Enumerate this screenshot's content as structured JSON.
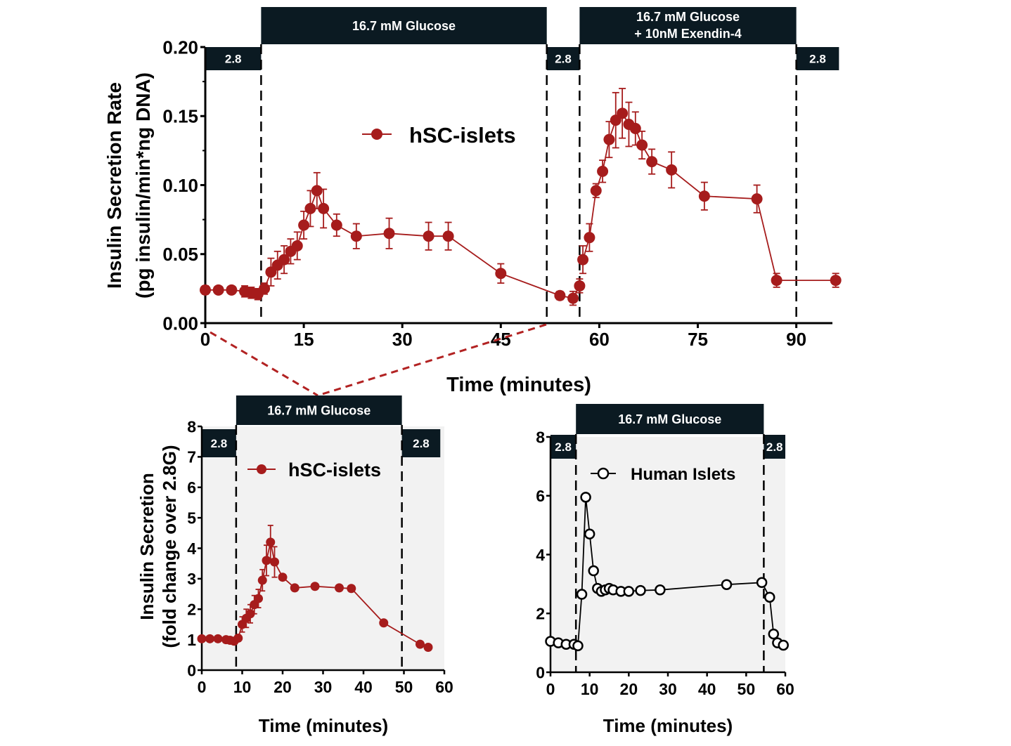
{
  "colors": {
    "series_red": "#a61c1c",
    "bar_dark": "#0b1a22",
    "panel_shade": "#f2f2f2",
    "zoom_line": "#b22222"
  },
  "chart_data": [
    {
      "type": "line",
      "xlabel": "Time (minutes)",
      "ylabel_line1": "Insulin Secretion Rate",
      "ylabel_line2": "(pg insulin/min*ng DNA)",
      "xlim": [
        0,
        95.5
      ],
      "ylim": [
        0,
        0.2
      ],
      "xticks": [
        "0",
        "15",
        "30",
        "45",
        "60",
        "75",
        "90"
      ],
      "xtick_values": [
        0,
        15,
        30,
        45,
        60,
        75,
        90
      ],
      "yticks": [
        "0.00",
        "0.05",
        "0.10",
        "0.15",
        "0.20"
      ],
      "ytick_values": [
        0,
        0.05,
        0.1,
        0.15,
        0.2
      ],
      "vlines": [
        8.5,
        52,
        57,
        90
      ],
      "treatment_bars": [
        {
          "label": "2.8",
          "start": 0,
          "end": 8.5,
          "level": "low"
        },
        {
          "label": "16.7 mM Glucose",
          "start": 8.5,
          "end": 52,
          "level": "high"
        },
        {
          "label": "2.8",
          "start": 52,
          "end": 57,
          "level": "low"
        },
        {
          "label": "16.7 mM Glucose",
          "label2": "+ 10nM Exendin-4",
          "start": 57,
          "end": 90,
          "level": "high"
        },
        {
          "label": "2.8",
          "start": 90,
          "end": 96.5,
          "level": "low"
        }
      ],
      "legend_position": "upper-center",
      "series": [
        {
          "name": "hSC-islets",
          "marker": "filled-circle",
          "segments": [
            {
              "x": [
                0,
                2,
                4,
                6,
                7,
                8,
                9,
                10,
                11,
                12,
                13,
                14,
                15,
                16,
                17,
                18,
                20,
                23,
                28,
                34,
                37,
                45,
                54,
                56,
                57
              ],
              "y": [
                0.024,
                0.024,
                0.024,
                0.023,
                0.022,
                0.021,
                0.025,
                0.037,
                0.042,
                0.046,
                0.052,
                0.056,
                0.071,
                0.083,
                0.096,
                0.083,
                0.071,
                0.063,
                0.065,
                0.063,
                0.063,
                0.036,
                0.02,
                0.018,
                0.027
              ],
              "err": [
                0.003,
                0.002,
                0.002,
                0.004,
                0.004,
                0.004,
                0.004,
                0.01,
                0.01,
                0.01,
                0.009,
                0.01,
                0.01,
                0.013,
                0.013,
                0.014,
                0.008,
                0.009,
                0.011,
                0.01,
                0.01,
                0.007,
                0.003,
                0.005,
                0.005
              ]
            },
            {
              "x": [
                57.5,
                58.5,
                59.5,
                60.5,
                61.5,
                62.5,
                63.5,
                64.5,
                65.5,
                66.5,
                68,
                71,
                76,
                84,
                87,
                96
              ],
              "y": [
                0.046,
                0.062,
                0.096,
                0.11,
                0.133,
                0.147,
                0.152,
                0.144,
                0.141,
                0.129,
                0.117,
                0.111,
                0.092,
                0.09,
                0.031,
                0.031
              ],
              "err": [
                0.01,
                0.01,
                0.005,
                0.008,
                0.013,
                0.02,
                0.018,
                0.016,
                0.012,
                0.01,
                0.009,
                0.013,
                0.01,
                0.01,
                0.005,
                0.005
              ]
            }
          ]
        }
      ]
    },
    {
      "type": "line",
      "xlabel": "Time (minutes)",
      "ylabel_line1": "Insulin Secretion",
      "ylabel_line2": "(fold change over 2.8G)",
      "xlim": [
        0,
        60
      ],
      "ylim": [
        0,
        8
      ],
      "xticks": [
        "0",
        "10",
        "20",
        "30",
        "40",
        "50",
        "60"
      ],
      "xtick_values": [
        0,
        10,
        20,
        30,
        40,
        50,
        60
      ],
      "yticks": [
        "0",
        "1",
        "2",
        "3",
        "4",
        "5",
        "6",
        "7",
        "8"
      ],
      "ytick_values": [
        0,
        1,
        2,
        3,
        4,
        5,
        6,
        7,
        8
      ],
      "vlines": [
        8.5,
        49.5
      ],
      "treatment_bars": [
        {
          "label": "2.8",
          "start": 0,
          "end": 8.5,
          "level": "low"
        },
        {
          "label": "16.7 mM Glucose",
          "start": 8.5,
          "end": 49.5,
          "level": "high"
        },
        {
          "label": "2.8",
          "start": 49.5,
          "end": 59,
          "level": "low"
        }
      ],
      "legend_position": "top-left",
      "series": [
        {
          "name": "hSC-islets",
          "marker": "filled-circle",
          "segments": [
            {
              "x": [
                0,
                2,
                4,
                6,
                7,
                8,
                9,
                10,
                11,
                12,
                13,
                14,
                15,
                16,
                17,
                18,
                20,
                23,
                28,
                34,
                37,
                45,
                54,
                56
              ],
              "y": [
                1.03,
                1.03,
                1.03,
                1.0,
                0.98,
                0.95,
                1.05,
                1.5,
                1.7,
                1.85,
                2.15,
                2.35,
                2.95,
                3.6,
                4.2,
                3.55,
                3.05,
                2.7,
                2.75,
                2.7,
                2.68,
                1.55,
                0.85,
                0.75
              ],
              "err": [
                0.05,
                0.05,
                0.05,
                0.08,
                0.08,
                0.08,
                0.1,
                0.25,
                0.3,
                0.3,
                0.3,
                0.3,
                0.35,
                0.5,
                0.55,
                0.5,
                0.1,
                0.1,
                0.1,
                0.1,
                0.1,
                0.08,
                0.05,
                0.05
              ]
            }
          ]
        }
      ]
    },
    {
      "type": "line",
      "xlabel": "Time (minutes)",
      "xlim": [
        0,
        60
      ],
      "ylim": [
        0,
        8
      ],
      "xticks": [
        "0",
        "10",
        "20",
        "30",
        "40",
        "50",
        "60"
      ],
      "xtick_values": [
        0,
        10,
        20,
        30,
        40,
        50,
        60
      ],
      "yticks": [
        "0",
        "2",
        "4",
        "6",
        "8"
      ],
      "ytick_values": [
        0,
        2,
        4,
        6,
        8
      ],
      "vlines": [
        6.5,
        54.5
      ],
      "treatment_bars": [
        {
          "label": "2.8",
          "start": 0,
          "end": 6.5,
          "level": "low"
        },
        {
          "label": "16.7 mM Glucose",
          "start": 6.5,
          "end": 54.5,
          "level": "high"
        },
        {
          "label": "2.8",
          "start": 54.5,
          "end": 60,
          "level": "low"
        }
      ],
      "legend_position": "top-left",
      "series": [
        {
          "name": "Human Islets",
          "marker": "open-circle",
          "segments": [
            {
              "x": [
                0,
                2,
                4,
                6,
                7,
                8,
                9,
                10,
                11,
                12,
                13,
                14,
                15,
                16,
                18,
                20,
                23,
                28,
                45,
                54,
                56,
                57,
                58,
                59.5
              ],
              "y": [
                1.05,
                1.0,
                0.95,
                0.95,
                0.9,
                2.65,
                5.95,
                4.7,
                3.45,
                2.85,
                2.75,
                2.8,
                2.85,
                2.8,
                2.75,
                2.75,
                2.78,
                2.8,
                2.98,
                3.05,
                2.55,
                1.3,
                1.0,
                0.92
              ]
            }
          ]
        }
      ]
    }
  ]
}
